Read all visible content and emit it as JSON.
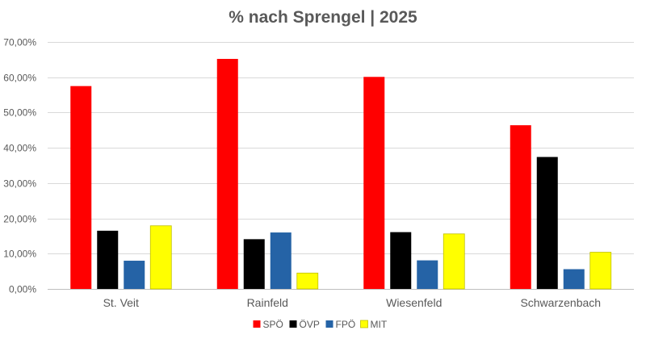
{
  "chart_data": {
    "type": "bar",
    "title": "% nach Sprengel | 2025",
    "xlabel": "",
    "ylabel": "",
    "categories": [
      "St. Veit",
      "Rainfeld",
      "Wiesenfeld",
      "Schwarzenbach"
    ],
    "series": [
      {
        "name": "SPÖ",
        "color": "#ff0000",
        "values": [
          57.5,
          65.2,
          60.1,
          46.4
        ]
      },
      {
        "name": "ÖVP",
        "color": "#000000",
        "values": [
          16.5,
          14.1,
          16.1,
          37.4
        ]
      },
      {
        "name": "FPÖ",
        "color": "#2563a6",
        "values": [
          8.0,
          16.0,
          8.1,
          5.6
        ]
      },
      {
        "name": "MIT",
        "color": "#ffff00",
        "values": [
          17.9,
          4.5,
          15.6,
          10.4
        ]
      }
    ],
    "ylim": [
      0,
      70
    ],
    "ytick_step": 10,
    "ytick_labels": [
      "0,00%",
      "10,00%",
      "20,00%",
      "30,00%",
      "40,00%",
      "50,00%",
      "60,00%",
      "70,00%"
    ],
    "grid": true,
    "legend_position": "bottom"
  }
}
